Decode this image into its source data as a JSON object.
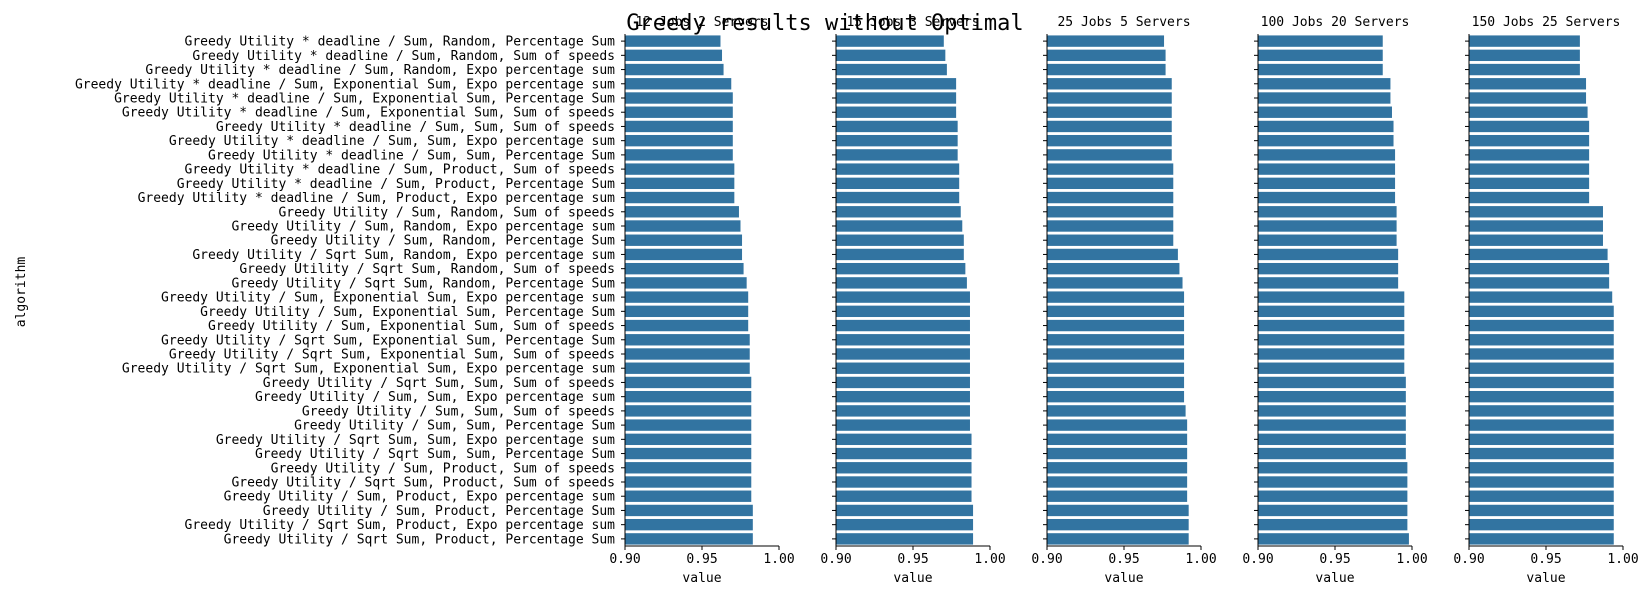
{
  "title": "Greedy results without Optimal",
  "colors": {
    "bar": "#3274a1",
    "axis": "#000000",
    "text": "#000000"
  },
  "ylabel": "algorithm",
  "xlabel": "value",
  "xlim": [
    0.9,
    1.0
  ],
  "xticks": [
    "0.90",
    "0.95",
    "1.00"
  ],
  "categories": [
    "Greedy Utility * deadline / Sum, Random, Percentage Sum",
    "Greedy Utility * deadline / Sum, Random, Sum of speeds",
    "Greedy Utility * deadline / Sum, Random, Expo percentage sum",
    "Greedy Utility * deadline / Sum, Exponential Sum, Expo percentage sum",
    "Greedy Utility * deadline / Sum, Exponential Sum, Percentage Sum",
    "Greedy Utility * deadline / Sum, Exponential Sum, Sum of speeds",
    "Greedy Utility * deadline / Sum, Sum, Sum of speeds",
    "Greedy Utility * deadline / Sum, Sum, Expo percentage sum",
    "Greedy Utility * deadline / Sum, Sum, Percentage Sum",
    "Greedy Utility * deadline / Sum, Product, Sum of speeds",
    "Greedy Utility * deadline / Sum, Product, Percentage Sum",
    "Greedy Utility * deadline / Sum, Product, Expo percentage sum",
    "Greedy Utility / Sum, Random, Sum of speeds",
    "Greedy Utility / Sum, Random, Expo percentage sum",
    "Greedy Utility / Sum, Random, Percentage Sum",
    "Greedy Utility / Sqrt Sum, Random, Expo percentage sum",
    "Greedy Utility / Sqrt Sum, Random, Sum of speeds",
    "Greedy Utility / Sqrt Sum, Random, Percentage Sum",
    "Greedy Utility / Sum, Exponential Sum, Expo percentage sum",
    "Greedy Utility / Sum, Exponential Sum, Percentage Sum",
    "Greedy Utility / Sum, Exponential Sum, Sum of speeds",
    "Greedy Utility / Sqrt Sum, Exponential Sum, Percentage Sum",
    "Greedy Utility / Sqrt Sum, Exponential Sum, Sum of speeds",
    "Greedy Utility / Sqrt Sum, Exponential Sum, Expo percentage sum",
    "Greedy Utility / Sqrt Sum, Sum, Sum of speeds",
    "Greedy Utility / Sum, Sum, Expo percentage sum",
    "Greedy Utility / Sum, Sum, Sum of speeds",
    "Greedy Utility / Sum, Sum, Percentage Sum",
    "Greedy Utility / Sqrt Sum, Sum, Expo percentage sum",
    "Greedy Utility / Sqrt Sum, Sum, Percentage Sum",
    "Greedy Utility / Sum, Product, Sum of speeds",
    "Greedy Utility / Sqrt Sum, Product, Sum of speeds",
    "Greedy Utility / Sum, Product, Expo percentage sum",
    "Greedy Utility / Sum, Product, Percentage Sum",
    "Greedy Utility / Sqrt Sum, Product, Expo percentage sum",
    "Greedy Utility / Sqrt Sum, Product, Percentage Sum"
  ],
  "chart_data": [
    {
      "type": "bar",
      "title": "12 Jobs 2 Servers",
      "xlabel": "value",
      "xlim": [
        0.9,
        1.0
      ],
      "values": [
        0.962,
        0.963,
        0.964,
        0.969,
        0.97,
        0.97,
        0.97,
        0.97,
        0.97,
        0.971,
        0.971,
        0.971,
        0.974,
        0.975,
        0.976,
        0.976,
        0.977,
        0.979,
        0.98,
        0.98,
        0.98,
        0.981,
        0.981,
        0.981,
        0.982,
        0.982,
        0.982,
        0.982,
        0.982,
        0.982,
        0.982,
        0.982,
        0.982,
        0.983,
        0.983,
        0.983
      ]
    },
    {
      "type": "bar",
      "title": "15 Jobs 3 Servers",
      "xlabel": "value",
      "xlim": [
        0.9,
        1.0
      ],
      "values": [
        0.97,
        0.971,
        0.972,
        0.978,
        0.978,
        0.978,
        0.979,
        0.979,
        0.979,
        0.98,
        0.98,
        0.98,
        0.981,
        0.982,
        0.983,
        0.983,
        0.984,
        0.985,
        0.987,
        0.987,
        0.987,
        0.987,
        0.987,
        0.987,
        0.987,
        0.987,
        0.987,
        0.987,
        0.988,
        0.988,
        0.988,
        0.988,
        0.988,
        0.989,
        0.989,
        0.989
      ]
    },
    {
      "type": "bar",
      "title": "25 Jobs 5 Servers",
      "xlabel": "value",
      "xlim": [
        0.9,
        1.0
      ],
      "values": [
        0.976,
        0.977,
        0.977,
        0.981,
        0.981,
        0.981,
        0.981,
        0.981,
        0.981,
        0.982,
        0.982,
        0.982,
        0.982,
        0.982,
        0.982,
        0.985,
        0.986,
        0.988,
        0.989,
        0.989,
        0.989,
        0.989,
        0.989,
        0.989,
        0.989,
        0.989,
        0.99,
        0.991,
        0.991,
        0.991,
        0.991,
        0.991,
        0.991,
        0.992,
        0.992,
        0.992
      ]
    },
    {
      "type": "bar",
      "title": "100 Jobs 20 Servers",
      "xlabel": "value",
      "xlim": [
        0.9,
        1.0
      ],
      "values": [
        0.981,
        0.981,
        0.981,
        0.986,
        0.986,
        0.987,
        0.988,
        0.988,
        0.989,
        0.989,
        0.989,
        0.989,
        0.99,
        0.99,
        0.99,
        0.991,
        0.991,
        0.991,
        0.995,
        0.995,
        0.995,
        0.995,
        0.995,
        0.995,
        0.996,
        0.996,
        0.996,
        0.996,
        0.996,
        0.996,
        0.997,
        0.997,
        0.997,
        0.997,
        0.997,
        0.998
      ]
    },
    {
      "type": "bar",
      "title": "150 Jobs 25 Servers",
      "xlabel": "value",
      "xlim": [
        0.9,
        1.0
      ],
      "values": [
        0.972,
        0.972,
        0.972,
        0.976,
        0.976,
        0.977,
        0.978,
        0.978,
        0.978,
        0.978,
        0.978,
        0.978,
        0.987,
        0.987,
        0.987,
        0.99,
        0.991,
        0.991,
        0.993,
        0.994,
        0.994,
        0.994,
        0.994,
        0.994,
        0.994,
        0.994,
        0.994,
        0.994,
        0.994,
        0.994,
        0.994,
        0.994,
        0.994,
        0.994,
        0.994,
        0.994
      ]
    }
  ]
}
